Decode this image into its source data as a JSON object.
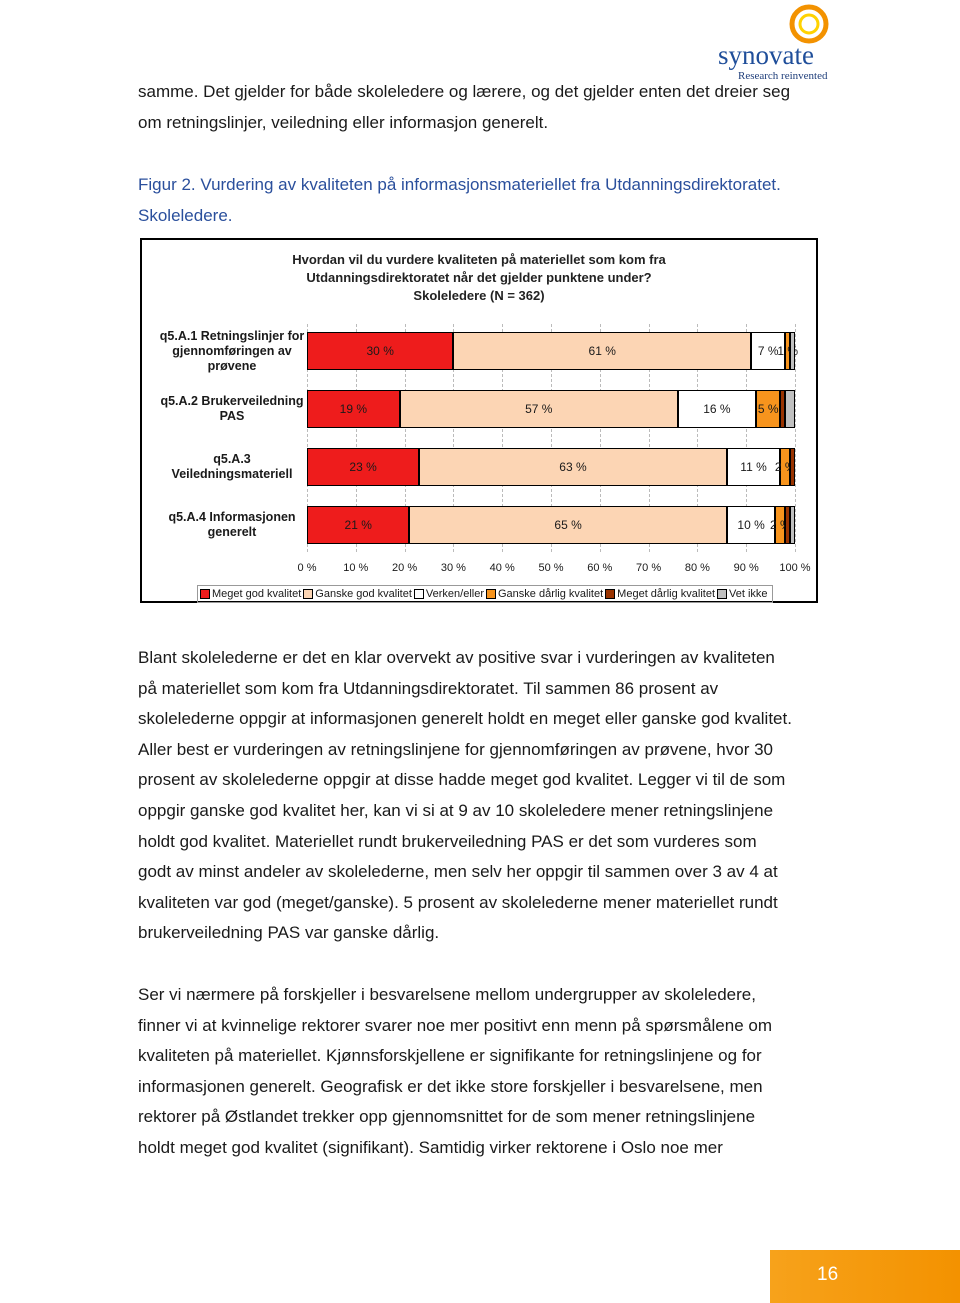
{
  "logo": {
    "name": "synovate",
    "tagline": "Research reinvented"
  },
  "paragraphs": [
    [
      "samme. Det gjelder for både skoleledere og lærere, og det gjelder enten det dreier seg",
      "om retningslinjer, veiledning eller informasjon generelt."
    ],
    [
      "Figur 2. Vurdering av kvaliteten på informasjonsmateriellet fra Utdanningsdirektoratet.",
      "Skoleledere."
    ],
    [
      "Blant skolelederne er det en klar overvekt av positive svar i vurderingen av kvaliteten",
      "på materiellet som kom fra Utdanningsdirektoratet. Til sammen 86 prosent av",
      "skolelederne oppgir at informasjonen generelt holdt en meget eller ganske god kvalitet.",
      "Aller best er vurderingen av retningslinjene for gjennomføringen av prøvene, hvor 30",
      "prosent av skolelederne oppgir at disse hadde meget god kvalitet. Legger vi til de som",
      "oppgir ganske god kvalitet her, kan vi si at 9 av 10 skoleledere mener retningslinjene",
      "holdt god kvalitet. Materiellet rundt brukerveiledning PAS er det som vurderes som",
      "godt av minst andeler av skolelederne, men selv her oppgir til sammen over 3 av 4 at",
      "kvaliteten var god (meget/ganske). 5 prosent av skolelederne mener materiellet rundt",
      "brukerveiledning PAS var ganske dårlig."
    ],
    [
      "Ser vi nærmere på forskjeller i besvarelsene mellom undergrupper av skoleledere,",
      "finner vi at kvinnelige rektorer svarer noe mer positivt enn menn på spørsmålene om",
      "kvaliteten på materiellet. Kjønnsforskjellene er signifikante for retningslinjene og for",
      "informasjonen generelt. Geografisk er det ikke store forskjeller i besvarelsene, men",
      "rektorer på Østlandet trekker opp gjennomsnittet for de som mener retningslinjene",
      "holdt meget god kvalitet (signifikant). Samtidig virker rektorene i Oslo noe mer"
    ]
  ],
  "chart_data": {
    "type": "stacked-bar",
    "title": [
      "Hvordan vil du vurdere kvaliteten på materiellet som kom fra",
      "Utdanningsdirektoratet når det gjelder punktene under?"
    ],
    "subtitle": "Skoleledere (N = 362)",
    "categories": [
      "q5.A.1 Retningslinjer for gjennomføringen av prøvene",
      "q5.A.2 Brukerveiledning PAS",
      "q5.A.3 Veiledningsmateriell",
      "q5.A.4 Informasjonen generelt"
    ],
    "series": [
      {
        "name": "Meget god kvalitet",
        "color": "#ee1c1c",
        "values": [
          30,
          19,
          23,
          21
        ],
        "value_labels": [
          "30 %",
          "19 %",
          "23 %",
          "21 %"
        ]
      },
      {
        "name": "Ganske god kvalitet",
        "color": "#fcd5b4",
        "values": [
          61,
          57,
          63,
          65
        ],
        "value_labels": [
          "61 %",
          "57 %",
          "63 %",
          "65 %"
        ]
      },
      {
        "name": "Verken/eller",
        "color": "#ffffff",
        "values": [
          7,
          16,
          11,
          10
        ],
        "value_labels": [
          "7 %",
          "16 %",
          "11 %",
          "10 %"
        ]
      },
      {
        "name": "Ganske dårlig kvalitet",
        "color": "#f7941d",
        "values": [
          1,
          5,
          2,
          2
        ],
        "value_labels": [
          "1 %",
          "5 %",
          "2 %",
          "2 %"
        ]
      },
      {
        "name": "Meget dårlig kvalitet",
        "color": "#993300",
        "values": [
          0,
          1,
          1,
          1
        ]
      },
      {
        "name": "Vet ikke",
        "color": "#c0c0c0",
        "values": [
          1,
          2,
          0,
          1
        ]
      }
    ],
    "xlim": [
      0,
      100
    ],
    "xticks": [
      {
        "value": 0,
        "label": "0 %"
      },
      {
        "value": 10,
        "label": "10 %"
      },
      {
        "value": 20,
        "label": "20 %"
      },
      {
        "value": 30,
        "label": "30 %"
      },
      {
        "value": 40,
        "label": "40 %"
      },
      {
        "value": 50,
        "label": "50 %"
      },
      {
        "value": 60,
        "label": "60 %"
      },
      {
        "value": 70,
        "label": "70 %"
      },
      {
        "value": 80,
        "label": "80 %"
      },
      {
        "value": 90,
        "label": "90 %"
      },
      {
        "value": 100,
        "label": "100 %"
      }
    ],
    "grid": true,
    "legend": "bottom"
  },
  "footer": {
    "page_number": "16"
  }
}
